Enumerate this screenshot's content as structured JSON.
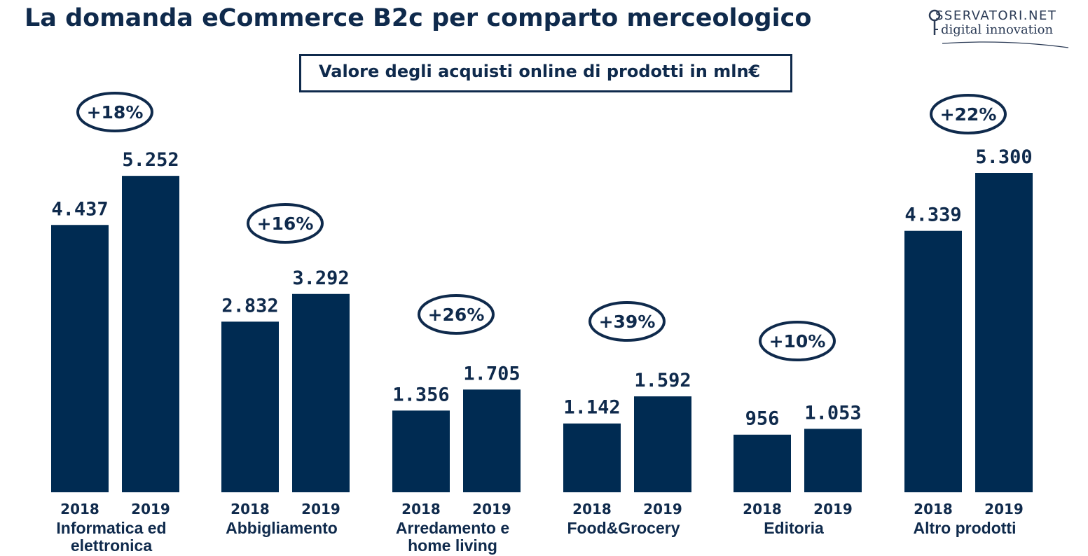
{
  "header": {
    "title": "La domanda eCommerce B2c per comparto merceologico",
    "subtitle": "Valore degli acquisti online di prodotti in mln€"
  },
  "logo": {
    "line1": "SSERVATORI.NET",
    "line2": "digital innovation"
  },
  "colors": {
    "bar": "#002b52",
    "text": "#0f2a4c"
  },
  "chart_data": {
    "type": "bar",
    "title": "La domanda eCommerce B2c per comparto merceologico",
    "subtitle": "Valore degli acquisti online di prodotti in mln€",
    "categories": [
      [
        "Informatica ed",
        "elettronica"
      ],
      [
        "Abbigliamento"
      ],
      [
        "Arredamento e",
        "home living"
      ],
      [
        "Food&Grocery"
      ],
      [
        "Editoria"
      ],
      [
        "Altro prodotti"
      ]
    ],
    "years": [
      "2018",
      "2019"
    ],
    "series": [
      {
        "year": "2018",
        "values": [
          4437,
          2832,
          1356,
          1142,
          956,
          4339
        ],
        "labels": [
          "4.437",
          "2.832",
          "1.356",
          "1.142",
          "956",
          "4.339"
        ]
      },
      {
        "year": "2019",
        "values": [
          5252,
          3292,
          1705,
          1592,
          1053,
          5300
        ],
        "labels": [
          "5.252",
          "3.292",
          "1.705",
          "1.592",
          "1.053",
          "5.300"
        ]
      }
    ],
    "growth": [
      "+18%",
      "+16%",
      "+26%",
      "+39%",
      "+10%",
      "+22%"
    ],
    "ylim": [
      0,
      5300
    ],
    "grid": false,
    "legend": "none"
  }
}
